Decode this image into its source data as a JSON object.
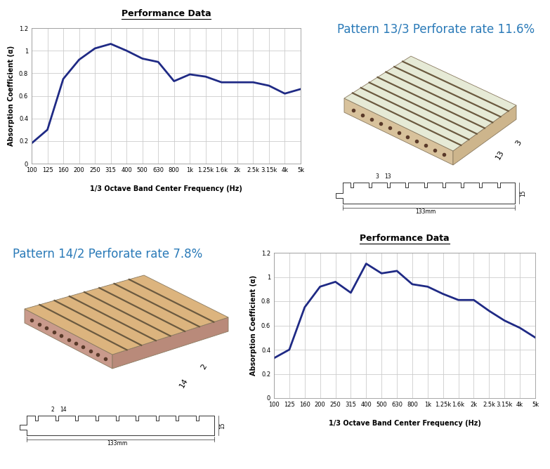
{
  "chart_data": [
    {
      "type": "line",
      "title": "Performance Data",
      "x_label": "1/3 Octave Band Center Frequency (Hz)",
      "y_label": "Absorption Coefficient (α)",
      "categories": [
        "100",
        "125",
        "160",
        "200",
        "250",
        "315",
        "400",
        "500",
        "630",
        "800",
        "1k",
        "1.25k",
        "1.6k",
        "2k",
        "2.5k",
        "3.15k",
        "4k",
        "5k"
      ],
      "values": [
        0.18,
        0.3,
        0.75,
        0.92,
        1.02,
        1.06,
        1.0,
        0.93,
        0.9,
        0.73,
        0.79,
        0.77,
        0.72,
        0.72,
        0.72,
        0.69,
        0.62,
        0.66
      ],
      "color": "#1f2a85",
      "ylim": [
        0,
        1.2
      ],
      "yticks": [
        0,
        0.2,
        0.4,
        0.6,
        0.8,
        1,
        1.2
      ],
      "grid": true
    },
    {
      "type": "line",
      "title": "Performance Data",
      "x_label": "1/3 Octave Band Center Frequency (Hz)",
      "y_label": "Absorption Coefficient (α)",
      "categories": [
        "100",
        "125",
        "160",
        "200",
        "250",
        "315",
        "400",
        "500",
        "630",
        "800",
        "1k",
        "1.25k",
        "1.6k",
        "2k",
        "2.5k",
        "3.15k",
        "4k",
        "5k"
      ],
      "values": [
        0.33,
        0.4,
        0.75,
        0.92,
        0.96,
        0.87,
        1.11,
        1.03,
        1.05,
        0.94,
        0.92,
        0.86,
        0.81,
        0.81,
        0.72,
        0.64,
        0.58,
        0.5
      ],
      "color": "#1f2a85",
      "ylim": [
        0,
        1.2
      ],
      "yticks": [
        0,
        0.2,
        0.4,
        0.6,
        0.8,
        1,
        1.2
      ],
      "grid": true
    }
  ],
  "panels": [
    {
      "title": "Pattern 13/3 Perforate rate 11.6%",
      "board_labels": {
        "pitch": "13",
        "slot": "3"
      },
      "profile_labels": {
        "slot": "3",
        "pitch": "13",
        "thickness": "15",
        "width": "133mm"
      }
    },
    {
      "title": "Pattern 14/2 Perforate rate 7.8%",
      "board_labels": {
        "pitch": "14",
        "slot": "2"
      },
      "profile_labels": {
        "slot": "2",
        "pitch": "14",
        "thickness": "15",
        "width": "133mm"
      }
    }
  ]
}
